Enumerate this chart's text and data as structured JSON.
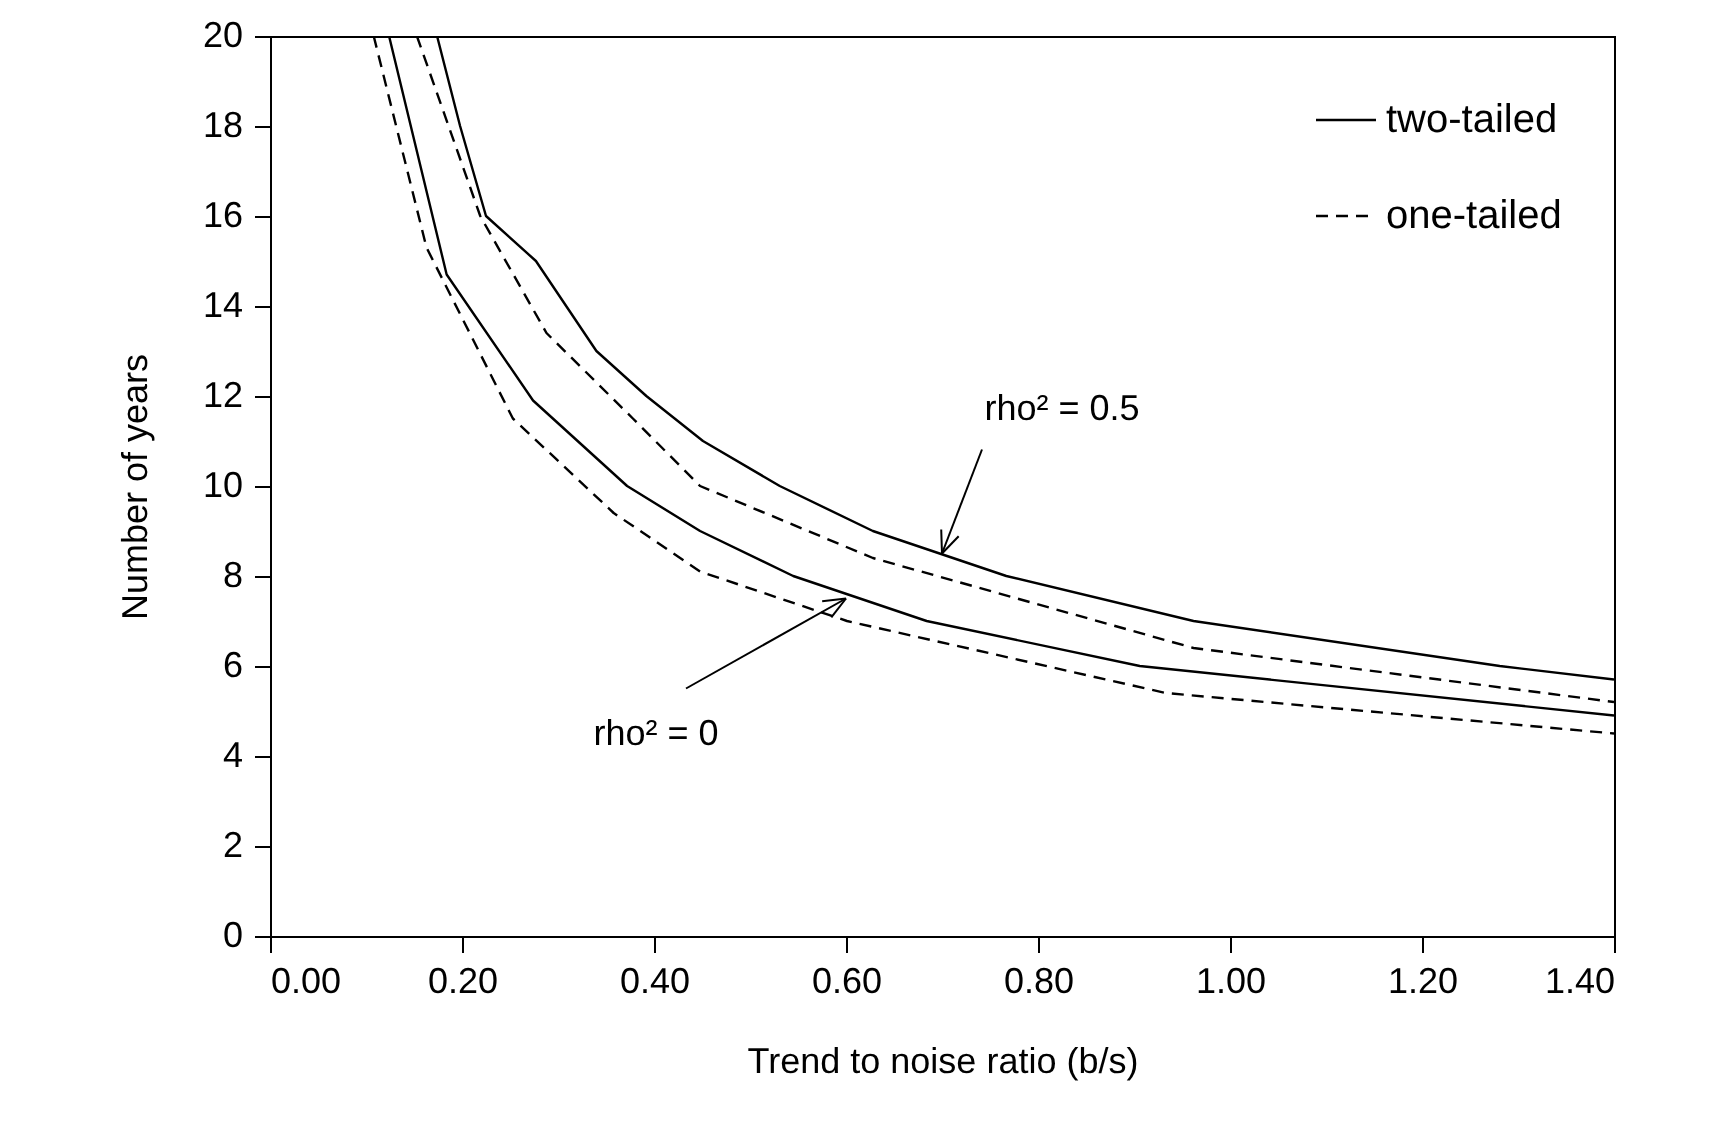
{
  "chart_data": {
    "type": "line",
    "xlabel": "Trend to noise ratio (b/s)",
    "ylabel": "Number of years",
    "xlim": [
      0,
      1.4
    ],
    "ylim": [
      0,
      20
    ],
    "xticks": [
      {
        "value": 0,
        "label": "0.00"
      },
      {
        "value": 0.2,
        "label": "0.20"
      },
      {
        "value": 0.4,
        "label": "0.40"
      },
      {
        "value": 0.6,
        "label": "0.60"
      },
      {
        "value": 0.8,
        "label": "0.80"
      },
      {
        "value": 1.0,
        "label": "1.00"
      },
      {
        "value": 1.2,
        "label": "1.20"
      },
      {
        "value": 1.4,
        "label": "1.40"
      }
    ],
    "yticks": [
      0,
      2,
      4,
      6,
      8,
      10,
      12,
      14,
      16,
      18,
      20
    ],
    "grid": false,
    "legend": "top right",
    "marker": "none",
    "series": [
      {
        "name": "two-tailed",
        "color": "#000000",
        "line_style": "solid",
        "x": [
          0.174,
          0.198,
          0.225,
          0.277,
          0.34,
          0.392,
          0.451,
          0.531,
          0.628,
          0.767,
          0.962,
          1.281,
          1.4
        ],
        "values": [
          20,
          18,
          16,
          15,
          13,
          12,
          11,
          10,
          9,
          8,
          7,
          6,
          5.7
        ]
      },
      {
        "name": "one-tailed",
        "color": "#000000",
        "line_style": "dashed",
        "x": [
          0.153,
          0.219,
          0.288,
          0.378,
          0.448,
          0.628,
          0.962,
          1.4
        ],
        "values": [
          20,
          16,
          13.4,
          11.5,
          10,
          8.4,
          6.4,
          5.2
        ]
      },
      {
        "color": "#000000",
        "line_style": "solid",
        "x": [
          0.124,
          0.184,
          0.274,
          0.372,
          0.448,
          0.545,
          0.684,
          0.906,
          1.4
        ],
        "values": [
          20,
          14.7,
          11.9,
          10,
          9,
          8,
          7,
          6,
          4.9
        ]
      },
      {
        "color": "#000000",
        "line_style": "dashed",
        "x": [
          0.108,
          0.163,
          0.253,
          0.358,
          0.448,
          0.601,
          0.933,
          1.4
        ],
        "values": [
          20,
          15.3,
          11.5,
          9.4,
          8.1,
          7,
          5.4,
          4.5
        ]
      }
    ],
    "annotations": [
      {
        "text": "rho² = 0.5",
        "x": 0.7,
        "y": 8.5
      },
      {
        "text": "rho² = 0",
        "x": 0.6,
        "y": 7.5
      }
    ]
  }
}
